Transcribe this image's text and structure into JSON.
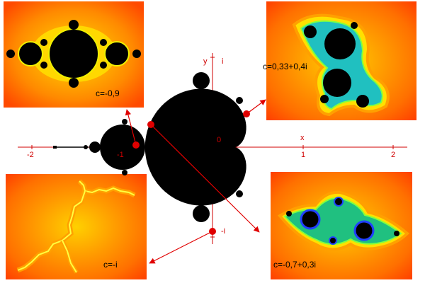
{
  "axes": {
    "x_label": "x",
    "y_label": "y",
    "imag_unit": "i",
    "neg_imag_unit": "-i",
    "origin": "0",
    "x_ticks": [
      "-2",
      "-1",
      "1",
      "2"
    ]
  },
  "insets": [
    {
      "caption": "c=-0,9"
    },
    {
      "caption": "c=0,33+0,4i"
    },
    {
      "caption": "c=-i"
    },
    {
      "caption": "c=-0,7+0,3i"
    }
  ]
}
